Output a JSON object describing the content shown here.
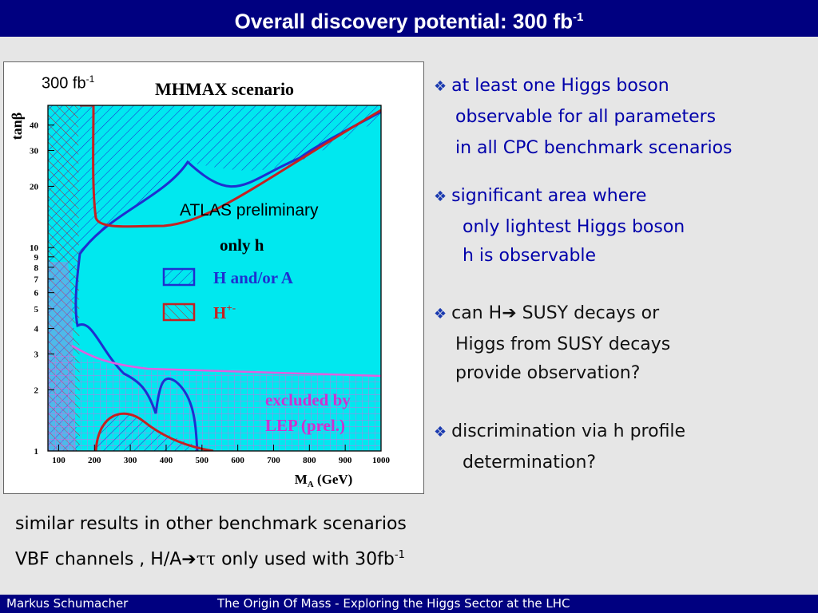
{
  "header": {
    "title": "Overall discovery potential: 300 fb",
    "title_sup": "-1"
  },
  "plot": {
    "lum_label": "300 fb",
    "lum_label_sup": "-1"
  },
  "chart_data": {
    "type": "area",
    "title": "MHMAX scenario",
    "xlabel": "M_A (GeV)",
    "ylabel": "tanβ",
    "x_ticks": [
      "100",
      "200",
      "300",
      "400",
      "500",
      "600",
      "700",
      "800",
      "900",
      "1000"
    ],
    "y_ticks": [
      "1",
      "2",
      "3",
      "4",
      "5",
      "6",
      "7",
      "8",
      "9",
      "10",
      "20",
      "30",
      "40"
    ],
    "xlim": [
      70,
      1000
    ],
    "ylim": [
      1,
      50
    ],
    "y_scale": "log",
    "annotations": [
      "ATLAS preliminary",
      "only h",
      "excluded by",
      "LEP (prel.)"
    ],
    "legend": [
      {
        "label": "H and/or A",
        "color": "#1e2fd0"
      },
      {
        "label": "H",
        "sup": "+-",
        "color": "#c62020"
      }
    ],
    "regions": [
      {
        "name": "only h",
        "color": "#00e8ef"
      },
      {
        "name": "excluded by LEP (prel.)",
        "color": "#e060e0"
      }
    ],
    "colors": {
      "only_h_fill": "#00e8ef",
      "heavy_higgs_hatch": "#1e2fd0",
      "charged_higgs_hatch": "#c62020",
      "lep_excluded": "#e060e0",
      "legend_text": "#1e2fd0",
      "lep_text": "#d030d0"
    }
  },
  "bullets": [
    {
      "lines": [
        "at least one Higgs boson",
        "observable for all parameters",
        "in all CPC benchmark scenarios"
      ]
    },
    {
      "lines": [
        "significant area where",
        "only lightest Higgs boson",
        "h is observable"
      ]
    },
    {
      "lines": [
        "can H",
        "SUSY decays or",
        "Higgs from SUSY decays",
        "provide observation?"
      ]
    },
    {
      "lines": [
        "discrimination via h profile",
        "determination?"
      ]
    }
  ],
  "bottom": {
    "line1": "similar results in other benchmark scenarios",
    "line2_pre": "VBF channels , H/A",
    "line2_tau": "ττ",
    "line2_post": " only used with 30fb",
    "line2_sup": "-1"
  },
  "footer": {
    "author": "Markus  Schumacher",
    "talk": "The Origin Of Mass - Exploring the Higgs Sector at the LHC"
  }
}
